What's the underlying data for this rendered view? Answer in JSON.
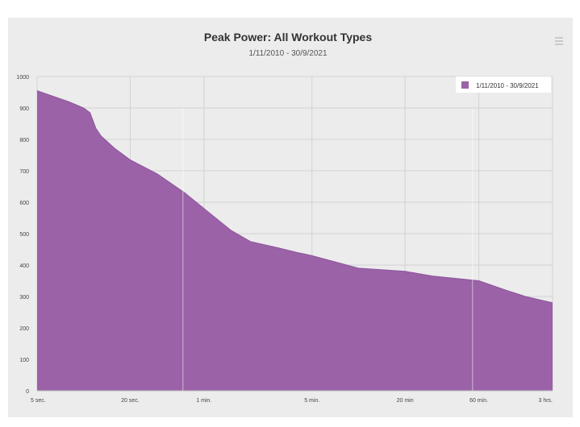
{
  "chart_data": {
    "type": "area",
    "title": "Peak Power: All Workout Types",
    "subtitle": "1/11/2010 - 30/9/2021",
    "x_ticks": [
      "5 sec.",
      "20 sec.",
      "1 min.",
      "5 min.",
      "20 min",
      "60 min.",
      "3 hrs."
    ],
    "ylim": [
      0,
      1000
    ],
    "y_ticks": [
      0,
      100,
      200,
      300,
      400,
      500,
      600,
      700,
      800,
      900,
      1000
    ],
    "grid": true,
    "legend_position": "top-right",
    "series": [
      {
        "name": "1/11/2010 - 30/9/2021",
        "color": "#9b62a8",
        "points": [
          {
            "x": "5 sec.",
            "y": 955
          },
          {
            "x": "7 sec.",
            "y": 930
          },
          {
            "x": "8 sec.",
            "y": 920
          },
          {
            "x": "10 sec.",
            "y": 900
          },
          {
            "x": "11 sec.",
            "y": 885
          },
          {
            "x": "12 sec.",
            "y": 835
          },
          {
            "x": "13 sec.",
            "y": 810
          },
          {
            "x": "16 sec.",
            "y": 770
          },
          {
            "x": "20 sec.",
            "y": 735
          },
          {
            "x": "30 sec.",
            "y": 690
          },
          {
            "x": "45 sec.",
            "y": 630
          },
          {
            "x": "1 min.",
            "y": 580
          },
          {
            "x": "90 sec.",
            "y": 510
          },
          {
            "x": "2 min.",
            "y": 475
          },
          {
            "x": "3 min.",
            "y": 455
          },
          {
            "x": "4 min.",
            "y": 440
          },
          {
            "x": "5 min.",
            "y": 430
          },
          {
            "x": "10 min.",
            "y": 390
          },
          {
            "x": "20 min",
            "y": 380
          },
          {
            "x": "30 min.",
            "y": 365
          },
          {
            "x": "60 min.",
            "y": 350
          },
          {
            "x": "90 min.",
            "y": 320
          },
          {
            "x": "2 hrs.",
            "y": 300
          },
          {
            "x": "3 hrs.",
            "y": 280
          }
        ]
      }
    ]
  }
}
